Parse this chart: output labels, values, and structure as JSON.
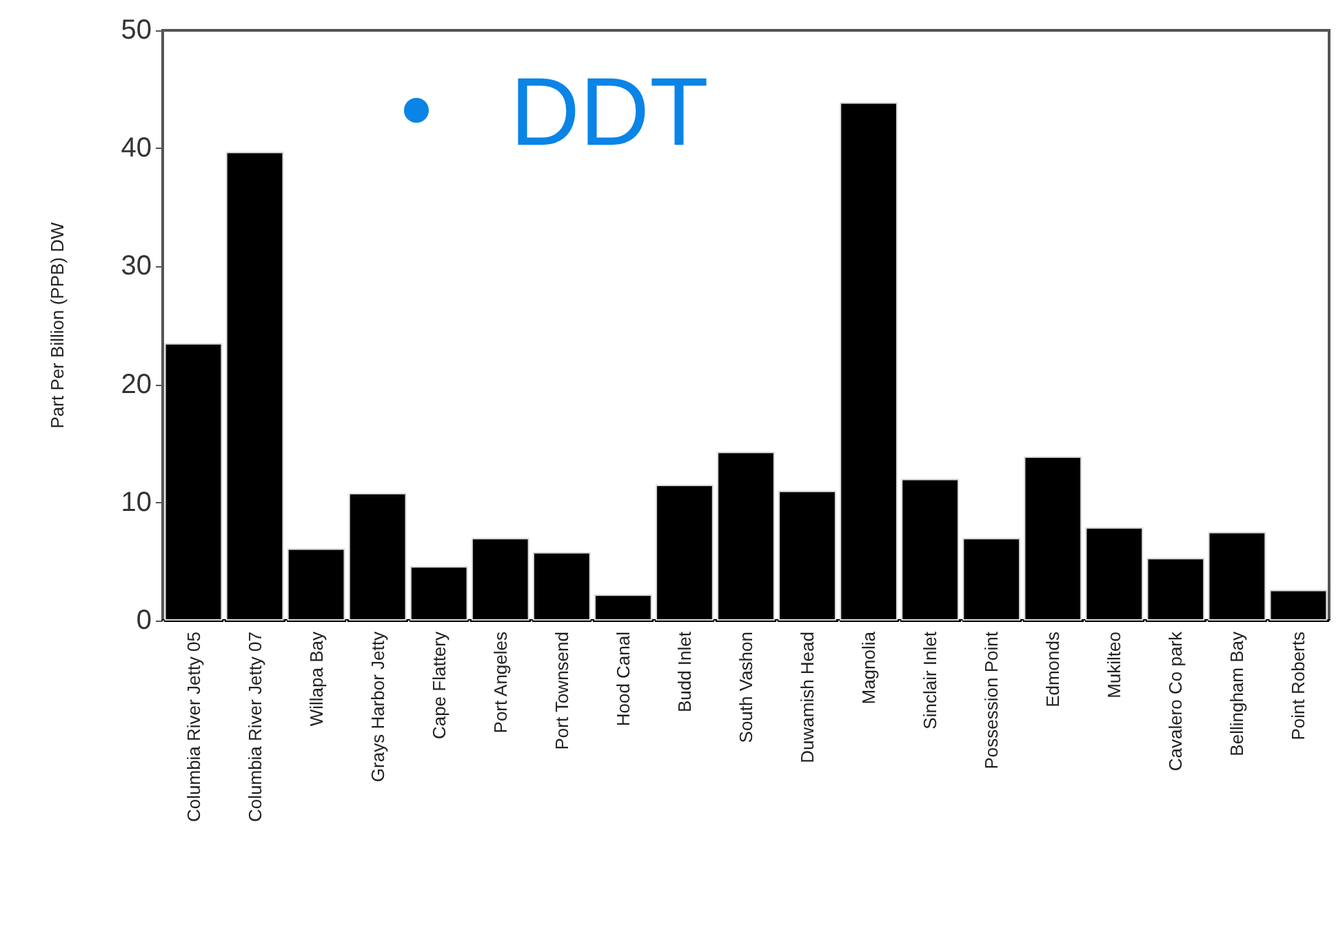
{
  "chart_data": {
    "type": "bar",
    "title": "DDT",
    "ylabel": "Part Per Billion (PPB) DW",
    "categories": [
      "Columbia River Jetty 05",
      "Columbia River Jetty 07",
      "Willapa Bay",
      "Grays Harbor Jetty",
      "Cape Flattery",
      "Port Angeles",
      "Port Townsend",
      "Hood Canal",
      "Budd Inlet",
      "South Vashon",
      "Duwamish Head",
      "Magnolia",
      "Sinclair Inlet",
      "Possession Point",
      "Edmonds",
      "Mukilteo",
      "Cavalero Co park",
      "Bellingham Bay",
      "Point Roberts"
    ],
    "values": [
      23.5,
      39.7,
      6.1,
      10.8,
      4.6,
      7.0,
      5.8,
      2.2,
      11.5,
      14.3,
      11.0,
      43.9,
      12.0,
      7.0,
      13.9,
      7.9,
      5.3,
      7.5,
      2.6
    ],
    "color": "#000000",
    "ylim": [
      0,
      50
    ],
    "yticks": [
      0,
      10,
      20,
      30,
      40,
      50
    ],
    "grid": false
  }
}
